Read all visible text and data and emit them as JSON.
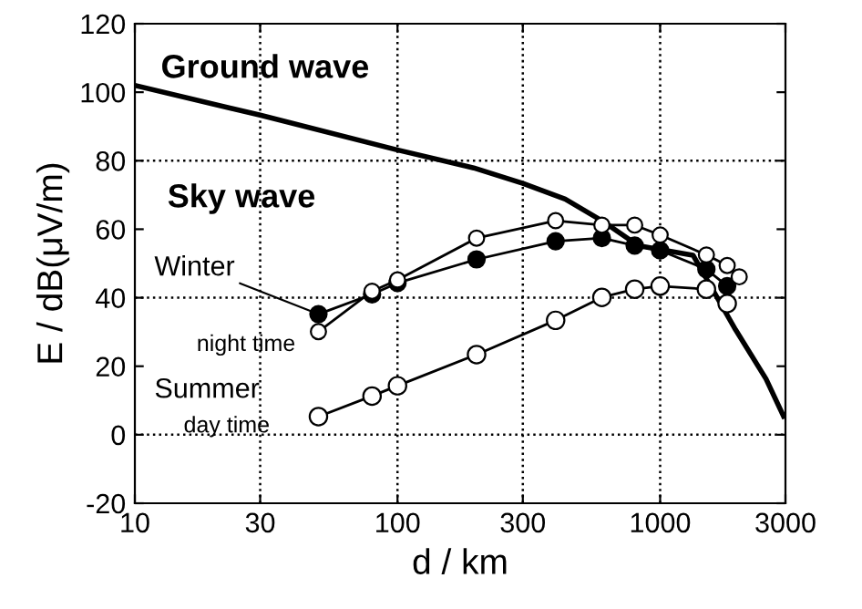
{
  "chart_data": {
    "type": "line",
    "xlabel": "d / km",
    "ylabel": "E / dB(μV/m)",
    "log": "x",
    "xlim": [
      10,
      3000
    ],
    "xticks": [
      10,
      30,
      100,
      300,
      1000,
      3000
    ],
    "ylim": [
      -20,
      120
    ],
    "yticks": [
      -20,
      0,
      20,
      40,
      60,
      80,
      100,
      120
    ],
    "grid": false,
    "ref_lines": [
      {
        "axis": "x",
        "value": 30,
        "line_style": "dotted",
        "color": "#000000"
      },
      {
        "axis": "x",
        "value": 100,
        "line_style": "dotted",
        "color": "#000000"
      },
      {
        "axis": "x",
        "value": 300,
        "line_style": "dotted",
        "color": "#000000"
      },
      {
        "axis": "x",
        "value": 1000,
        "line_style": "dotted",
        "color": "#000000"
      },
      {
        "axis": "y",
        "value": 0,
        "line_style": "dotted",
        "color": "#000000"
      },
      {
        "axis": "y",
        "value": 40,
        "line_style": "dotted",
        "color": "#000000"
      },
      {
        "axis": "y",
        "value": 80,
        "line_style": "dotted",
        "color": "#000000"
      }
    ],
    "series": [
      {
        "color": "#000000",
        "marker": "none",
        "x": [
          10,
          30,
          98,
          195,
          300,
          435,
          600,
          826,
          1334,
          1936,
          2530,
          2950
        ],
        "values": [
          102,
          93.3,
          83.3,
          77.9,
          73.4,
          68.8,
          62.5,
          55.2,
          52.4,
          30.7,
          16.3,
          5.4
        ]
      },
      {
        "color": "#000000",
        "marker": "circle",
        "colors": [
          "#ffffff",
          "#ffffff",
          "#ffffff",
          "#ffffff",
          "#ffffff",
          "#ffffff",
          "#ffffff",
          "#ffffff",
          "#ffffff",
          "#ffffff",
          "#ffffff"
        ],
        "x": [
          50,
          80,
          100,
          200,
          400,
          600,
          800,
          1000,
          1500,
          1800,
          2000
        ],
        "values": [
          30.1,
          41.9,
          45.2,
          57.4,
          62.5,
          61.2,
          61.2,
          58.3,
          52.5,
          49.4,
          46.1
        ]
      },
      {
        "color": "#000000",
        "marker": "circle",
        "colors": [
          "#000000",
          "#000000",
          "#000000",
          "#000000",
          "#000000",
          "#000000",
          "#000000",
          "#000000",
          "#000000",
          "#000000"
        ],
        "x": [
          50,
          80,
          100,
          200,
          400,
          600,
          800,
          1000,
          1500,
          1800
        ],
        "values": [
          35.2,
          41,
          44.3,
          51.2,
          56.5,
          57.4,
          55.2,
          53.8,
          48.3,
          43.4
        ]
      },
      {
        "color": "#000000",
        "marker": "circle",
        "colors": [
          "#ffffff",
          "#ffffff",
          "#ffffff",
          "#ffffff",
          "#ffffff",
          "#ffffff",
          "#ffffff",
          "#ffffff",
          "#ffffff",
          "#ffffff"
        ],
        "x": [
          50,
          80,
          100,
          200,
          400,
          600,
          800,
          1000,
          1500,
          1800
        ],
        "values": [
          5.3,
          11.3,
          14.3,
          23.4,
          33.4,
          40.1,
          42.5,
          43.4,
          42.5,
          38.3
        ]
      }
    ],
    "annotations": [
      "Ground wave",
      "Sky wave",
      {
        "text": "Winter",
        "x": 50,
        "y": 35.2
      },
      "night time",
      "Summer",
      "day time"
    ]
  }
}
